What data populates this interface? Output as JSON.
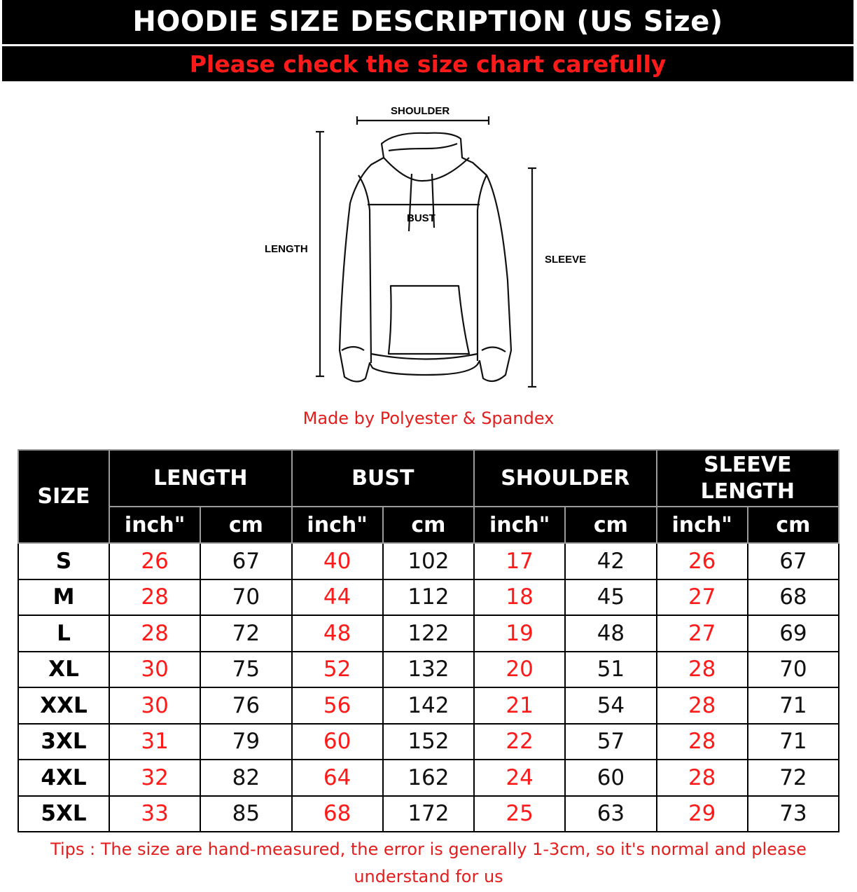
{
  "header": {
    "title": "HOODIE SIZE DESCRIPTION (US Size)",
    "subtitle": "Please check the size chart carefully"
  },
  "diagram": {
    "shoulder": "SHOULDER",
    "bust": "BUST",
    "length": "LENGTH",
    "sleeve": "SLEEVE"
  },
  "material": "Made by Polyester & Spandex",
  "colors": {
    "accent_red": "#ff1a1a",
    "header_bg": "#000000"
  },
  "table": {
    "size_header": "SIZE",
    "groups": [
      "LENGTH",
      "BUST",
      "SHOULDER",
      "SLEEVE LENGTH"
    ],
    "units": [
      "inch\"",
      "cm"
    ],
    "rows": [
      [
        "S",
        "26",
        "67",
        "40",
        "102",
        "17",
        "42",
        "26",
        "67"
      ],
      [
        "M",
        "28",
        "70",
        "44",
        "112",
        "18",
        "45",
        "27",
        "68"
      ],
      [
        "L",
        "28",
        "72",
        "48",
        "122",
        "19",
        "48",
        "27",
        "69"
      ],
      [
        "XL",
        "30",
        "75",
        "52",
        "132",
        "20",
        "51",
        "28",
        "70"
      ],
      [
        "XXL",
        "30",
        "76",
        "56",
        "142",
        "21",
        "54",
        "28",
        "71"
      ],
      [
        "3XL",
        "31",
        "79",
        "60",
        "152",
        "22",
        "57",
        "28",
        "71"
      ],
      [
        "4XL",
        "32",
        "82",
        "64",
        "162",
        "24",
        "60",
        "28",
        "72"
      ],
      [
        "5XL",
        "33",
        "85",
        "68",
        "172",
        "25",
        "63",
        "29",
        "73"
      ]
    ]
  },
  "tips": "Tips : The size are hand-measured, the error is generally 1-3cm, so it's normal and please understand for us"
}
